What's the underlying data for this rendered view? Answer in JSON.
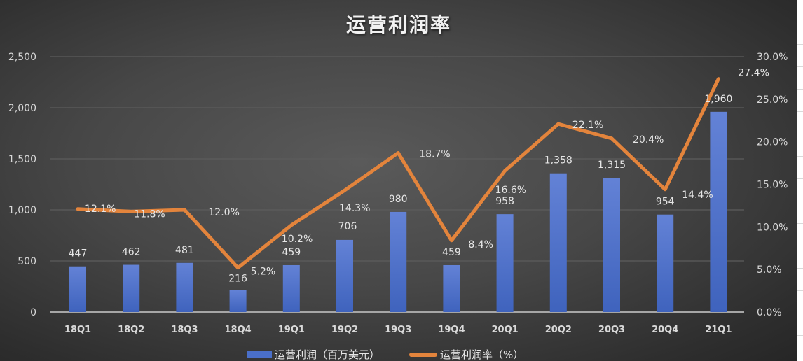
{
  "title": "运营利润率",
  "colors": {
    "bar": "#4a6fc9",
    "line": "#e3843c",
    "text": "#e6e6e6",
    "grid": "#5c5c5c",
    "background": "#3c3c3c"
  },
  "axes": {
    "left_ticks": [
      "2,500",
      "2,000",
      "1,500",
      "1,000",
      "500",
      "0"
    ],
    "right_ticks": [
      "30.0%",
      "25.0%",
      "20.0%",
      "15.0%",
      "10.0%",
      "5.0%",
      "0.0%"
    ]
  },
  "legend": {
    "bar_label": "运营利润（百万美元）",
    "line_label": "运营利润率（%）"
  },
  "chart_data": {
    "type": "bar+line",
    "title": "运营利润率",
    "categories": [
      "18Q1",
      "18Q2",
      "18Q3",
      "18Q4",
      "19Q1",
      "19Q2",
      "19Q3",
      "19Q4",
      "20Q1",
      "20Q2",
      "20Q3",
      "20Q4",
      "21Q1"
    ],
    "series": [
      {
        "name": "运营利润（百万美元）",
        "type": "bar",
        "axis": "left",
        "values": [
          447,
          462,
          481,
          216,
          459,
          706,
          980,
          459,
          958,
          1358,
          1315,
          954,
          1960
        ],
        "labels": [
          "447",
          "462",
          "481",
          "216",
          "459",
          "706",
          "980",
          "459",
          "958",
          "1,358",
          "1,315",
          "954",
          "1,960"
        ]
      },
      {
        "name": "运营利润率（%）",
        "type": "line",
        "axis": "right",
        "values": [
          12.1,
          11.8,
          12.0,
          5.2,
          10.2,
          14.3,
          18.7,
          8.4,
          16.6,
          22.1,
          20.4,
          14.4,
          27.4
        ],
        "labels": [
          "12.1%",
          "11.8%",
          "12.0%",
          "5.2%",
          "10.2%",
          "14.3%",
          "18.7%",
          "8.4%",
          "16.6%",
          "22.1%",
          "20.4%",
          "14.4%",
          "27.4%"
        ]
      }
    ],
    "ylabel_left": "",
    "ylabel_right": "",
    "ylim_left": [
      0,
      2500
    ],
    "ylim_right": [
      0,
      30
    ],
    "grid": true,
    "legend_position": "bottom"
  }
}
